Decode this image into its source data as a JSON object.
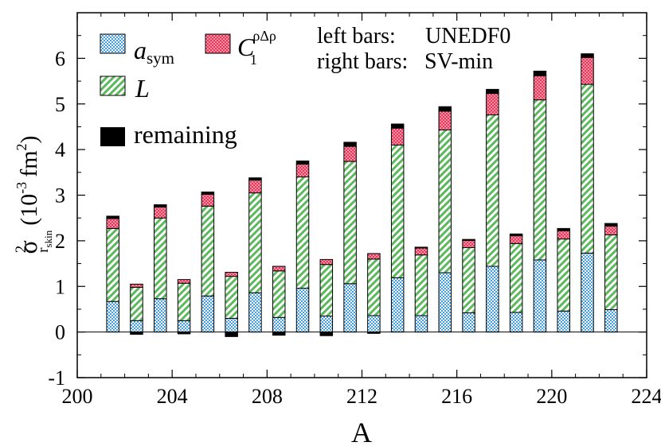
{
  "chart_data": {
    "type": "bar",
    "stacked": true,
    "xlabel": "A",
    "ylabel_main": "σ",
    "ylabel_sup": "2",
    "ylabel_sub": "r",
    "ylabel_subsub": "skin",
    "ylabel_units": "(10",
    "ylabel_units_exp": "-3",
    "ylabel_units_tail": "fm",
    "ylabel_units_exp2": "2",
    "ylabel_close": ")",
    "xlim": [
      200,
      224
    ],
    "ylim": [
      -1,
      7
    ],
    "xticks": [
      200,
      204,
      208,
      212,
      216,
      220,
      224
    ],
    "yticks": [
      -1,
      0,
      1,
      2,
      3,
      4,
      5,
      6
    ],
    "note_left": "left bars:",
    "note_left_value": "UNEDF0",
    "note_right": "right bars:",
    "note_right_value": "SV-min",
    "legend": {
      "asym_main": "a",
      "asym_sub": "sym",
      "c1_main": "C",
      "c1_sub": "1",
      "c1_sup": "ρΔρ",
      "L": "L",
      "remaining": "remaining"
    },
    "colors": {
      "asym": "#3fa0e8",
      "L": "#5cb85c",
      "c1": "#e8365a",
      "remaining": "#000000"
    },
    "groups": [
      {
        "A": 202,
        "left": {
          "asym": 0.67,
          "L": 1.6,
          "c1": 0.22,
          "remaining": 0.05
        },
        "right": {
          "asym": 0.25,
          "L": 0.73,
          "c1": 0.07,
          "remaining": -0.05
        }
      },
      {
        "A": 204,
        "left": {
          "asym": 0.73,
          "L": 1.77,
          "c1": 0.24,
          "remaining": 0.05
        },
        "right": {
          "asym": 0.25,
          "L": 0.82,
          "c1": 0.08,
          "remaining": -0.04
        }
      },
      {
        "A": 206,
        "left": {
          "asym": 0.79,
          "L": 1.97,
          "c1": 0.26,
          "remaining": 0.05
        },
        "right": {
          "asym": 0.3,
          "L": 0.92,
          "c1": 0.09,
          "remaining": -0.1
        }
      },
      {
        "A": 208,
        "left": {
          "asym": 0.86,
          "L": 2.19,
          "c1": 0.28,
          "remaining": 0.05
        },
        "right": {
          "asym": 0.32,
          "L": 1.02,
          "c1": 0.1,
          "remaining": -0.07
        }
      },
      {
        "A": 210,
        "left": {
          "asym": 0.96,
          "L": 2.44,
          "c1": 0.28,
          "remaining": 0.07
        },
        "right": {
          "asym": 0.35,
          "L": 1.13,
          "c1": 0.11,
          "remaining": -0.08
        }
      },
      {
        "A": 212,
        "left": {
          "asym": 1.06,
          "L": 2.68,
          "c1": 0.33,
          "remaining": 0.09
        },
        "right": {
          "asym": 0.36,
          "L": 1.24,
          "c1": 0.12,
          "remaining": -0.03
        }
      },
      {
        "A": 214,
        "left": {
          "asym": 1.19,
          "L": 2.91,
          "c1": 0.37,
          "remaining": 0.09
        },
        "right": {
          "asym": 0.36,
          "L": 1.33,
          "c1": 0.15,
          "remaining": 0.02
        }
      },
      {
        "A": 216,
        "left": {
          "asym": 1.3,
          "L": 3.13,
          "c1": 0.41,
          "remaining": 0.1
        },
        "right": {
          "asym": 0.42,
          "L": 1.43,
          "c1": 0.16,
          "remaining": 0.02
        }
      },
      {
        "A": 218,
        "left": {
          "asym": 1.44,
          "L": 3.32,
          "c1": 0.47,
          "remaining": 0.09
        },
        "right": {
          "asym": 0.43,
          "L": 1.51,
          "c1": 0.17,
          "remaining": 0.04
        }
      },
      {
        "A": 220,
        "left": {
          "asym": 1.58,
          "L": 3.51,
          "c1": 0.53,
          "remaining": 0.1
        },
        "right": {
          "asym": 0.46,
          "L": 1.58,
          "c1": 0.18,
          "remaining": 0.05
        }
      },
      {
        "A": 222,
        "left": {
          "asym": 1.73,
          "L": 3.7,
          "c1": 0.59,
          "remaining": 0.08
        },
        "right": {
          "asym": 0.49,
          "L": 1.64,
          "c1": 0.19,
          "remaining": 0.06
        }
      }
    ]
  }
}
